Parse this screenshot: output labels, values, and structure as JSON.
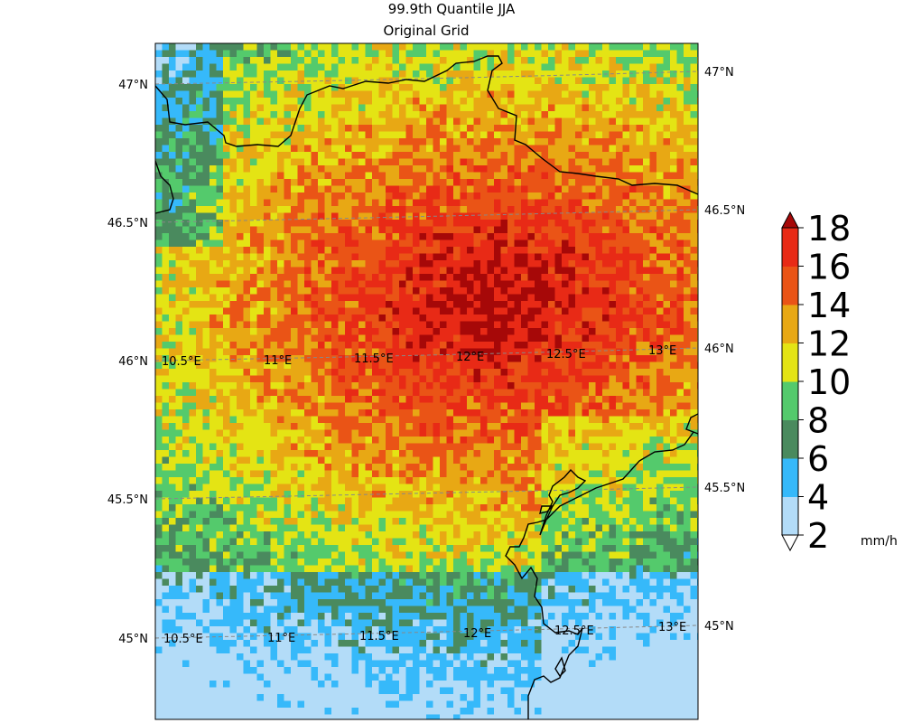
{
  "title": "99.9th Quantile JJA",
  "subtitle": "Original Grid",
  "colorbar": {
    "unit": "mm/h",
    "tick_labels": [
      "2",
      "4",
      "6",
      "8",
      "10",
      "12",
      "14",
      "16",
      "18"
    ],
    "colors": [
      "#b3dcf8",
      "#36b9fa",
      "#4a8a5e",
      "#54ca6c",
      "#e4e414",
      "#e8a814",
      "#ea5416",
      "#e82a16"
    ],
    "under_color": "#ffffff",
    "over_color": "#a60808"
  },
  "map": {
    "lat_labels_left": [
      "47°N",
      "46.5°N",
      "46°N",
      "45.5°N",
      "45°N"
    ],
    "lat_labels_right": [
      "47°N",
      "46.5°N",
      "46°N",
      "45.5°N",
      "45°N"
    ],
    "lon_labels_mid": [
      "10.5°E",
      "11°E",
      "11.5°E",
      "12°E",
      "12.5°E",
      "13°E"
    ],
    "lon_labels_bottom": [
      "10.5°E",
      "11°E",
      "11.5°E",
      "12°E",
      "12.5°E",
      "13°E"
    ],
    "lon_range": [
      10.4,
      13.3
    ],
    "lat_range": [
      44.7,
      47.2
    ]
  }
}
